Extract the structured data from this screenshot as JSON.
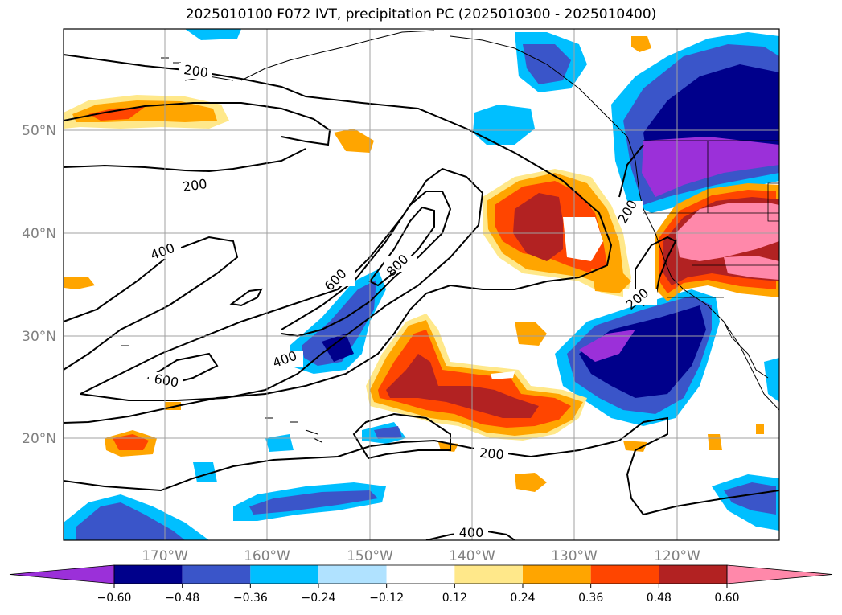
{
  "title": "2025010100 F072 IVT, precipitation PC (2025010300 - 2025010400)",
  "axes": {
    "lat_labels": [
      "50°N",
      "40°N",
      "30°N",
      "20°N"
    ],
    "lon_labels": [
      "170°W",
      "160°W",
      "150°W",
      "140°W",
      "130°W",
      "120°W"
    ]
  },
  "contour_labels": [
    "200",
    "200",
    "200",
    "200",
    "200",
    "400",
    "400",
    "400",
    "600",
    "600",
    "800"
  ],
  "colorbar": {
    "ticks": [
      "−0.60",
      "−0.48",
      "−0.36",
      "−0.24",
      "−0.12",
      "0.12",
      "0.24",
      "0.36",
      "0.48",
      "0.60"
    ],
    "colors": [
      "#9b30d9",
      "#00008b",
      "#3a55c9",
      "#00bfff",
      "#b0e2ff",
      "#ffffff",
      "#ffe88a",
      "#ffa500",
      "#ff4500",
      "#b22222",
      "#ff88aa",
      "#ff88aa"
    ]
  }
}
